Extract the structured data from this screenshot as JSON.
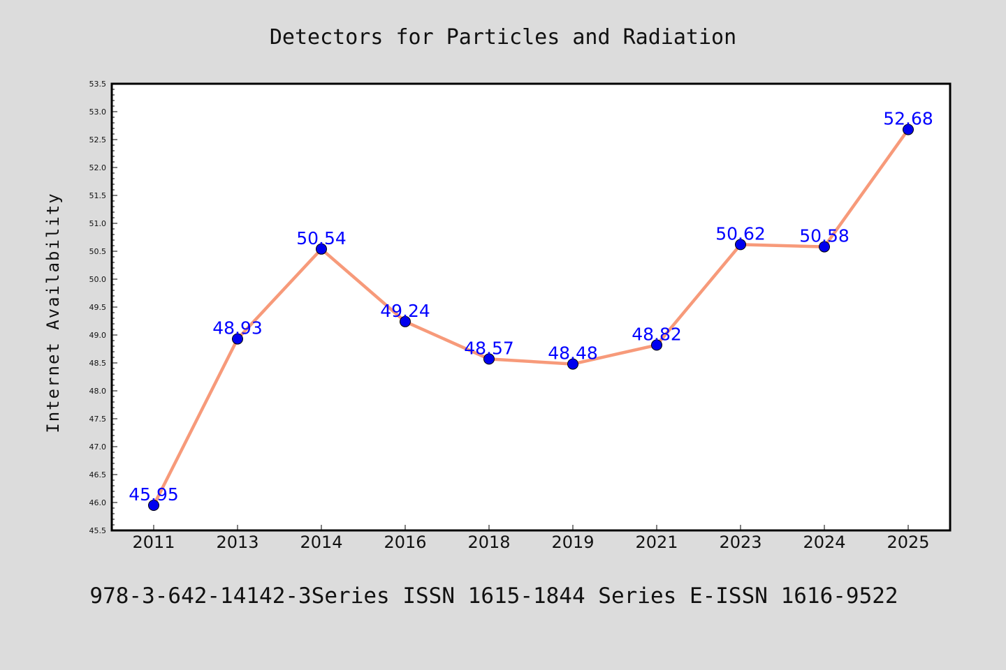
{
  "colors": {
    "background": "#dcdcdc",
    "plot_background": "#ffffff",
    "line": "#f79a7a",
    "marker": "#0000ee",
    "data_label": "#0000ff",
    "text": "#111111"
  },
  "footer": "978-3-642-14142-3Series ISSN 1615-1844 Series E-ISSN 1616-9522",
  "chart_data": {
    "type": "line",
    "title": "Detectors for Particles and Radiation",
    "xlabel": "",
    "ylabel": "Internet Availability",
    "categories": [
      "2011",
      "2013",
      "2014",
      "2016",
      "2018",
      "2019",
      "2021",
      "2023",
      "2024",
      "2025"
    ],
    "series": [
      {
        "values": [
          45.95,
          48.93,
          50.54,
          49.24,
          48.57,
          48.48,
          48.82,
          50.62,
          50.58,
          52.68
        ],
        "labels": [
          "45.95",
          "48.93",
          "50.54",
          "49.24",
          "48.57",
          "48.48",
          "48.82",
          "50.62",
          "50.58",
          "52.68"
        ]
      }
    ],
    "ylim": [
      45.5,
      53.5
    ],
    "yticks": [
      "45.5",
      "46.0",
      "46.5",
      "47.0",
      "47.5",
      "48.0",
      "48.5",
      "49.0",
      "49.5",
      "50.0",
      "50.5",
      "51.0",
      "51.5",
      "52.0",
      "52.5",
      "53.0",
      "53.5"
    ],
    "grid": false,
    "legend": "none",
    "markers": true
  }
}
